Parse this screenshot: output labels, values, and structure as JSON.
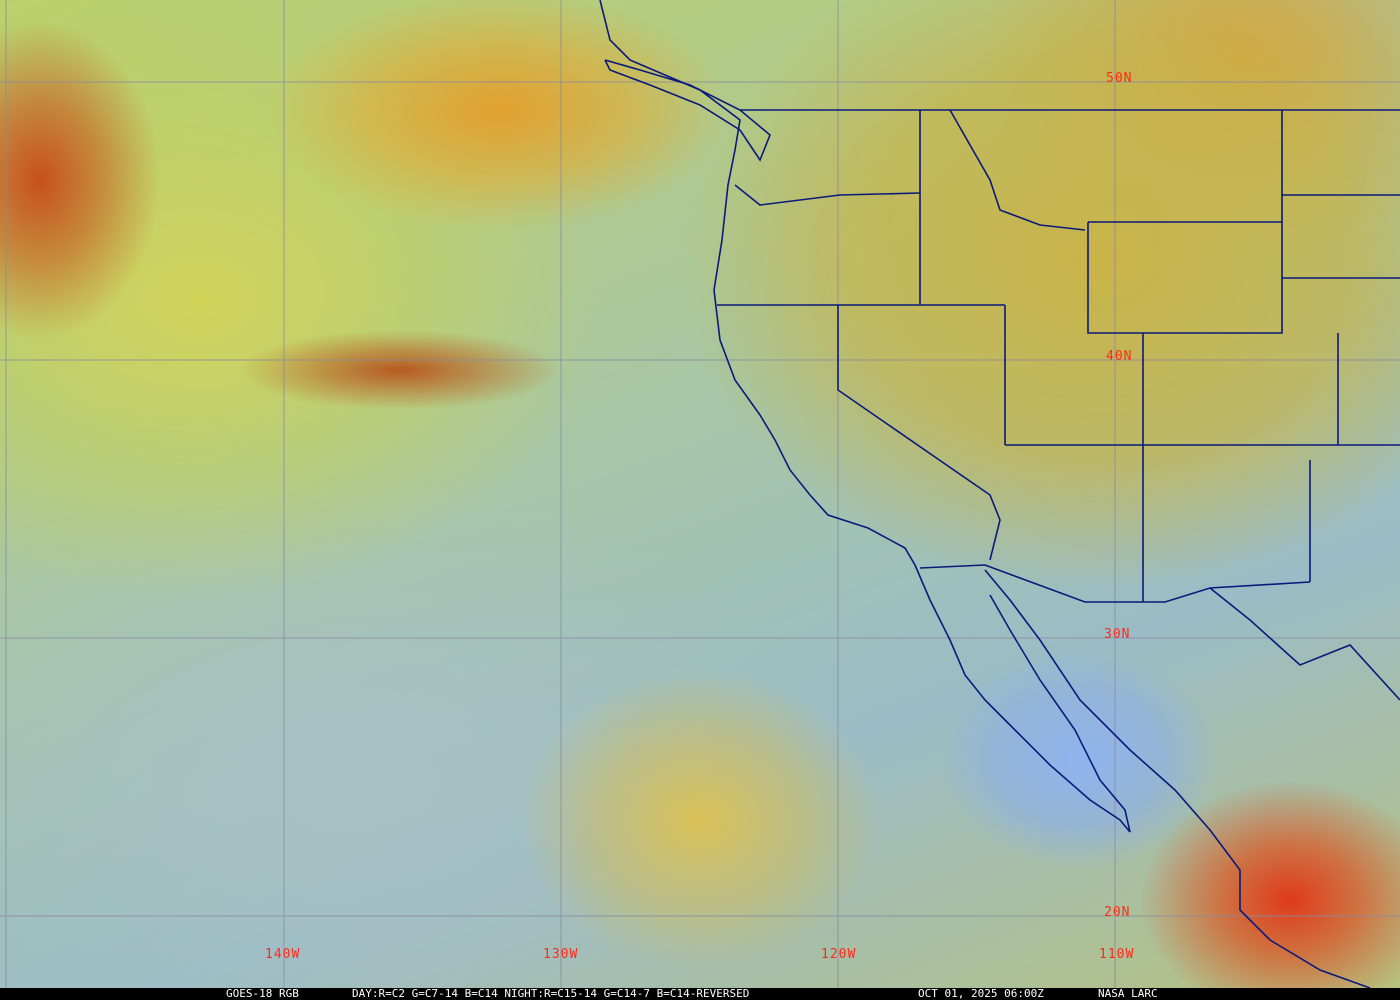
{
  "map": {
    "type": "satellite RGB composite",
    "region": "US West Coast / Eastern Pacific",
    "lat_labels": [
      "50N",
      "40N",
      "30N",
      "20N"
    ],
    "lon_labels": [
      "140W",
      "130W",
      "120W",
      "110W"
    ],
    "grid": true,
    "colors": {
      "label": "#ff2a1a",
      "boundary": "#0a1a7a",
      "grid": "#8a8aa0"
    }
  },
  "caption": {
    "product": "GOES-18 RGB",
    "recipe": "DAY:R=C2 G=C7-14 B=C14 NIGHT:R=C15-14 G=C14-7 B=C14-REVERSED",
    "datetime": "OCT 01, 2025 06:00Z",
    "source": "NASA LARC"
  }
}
